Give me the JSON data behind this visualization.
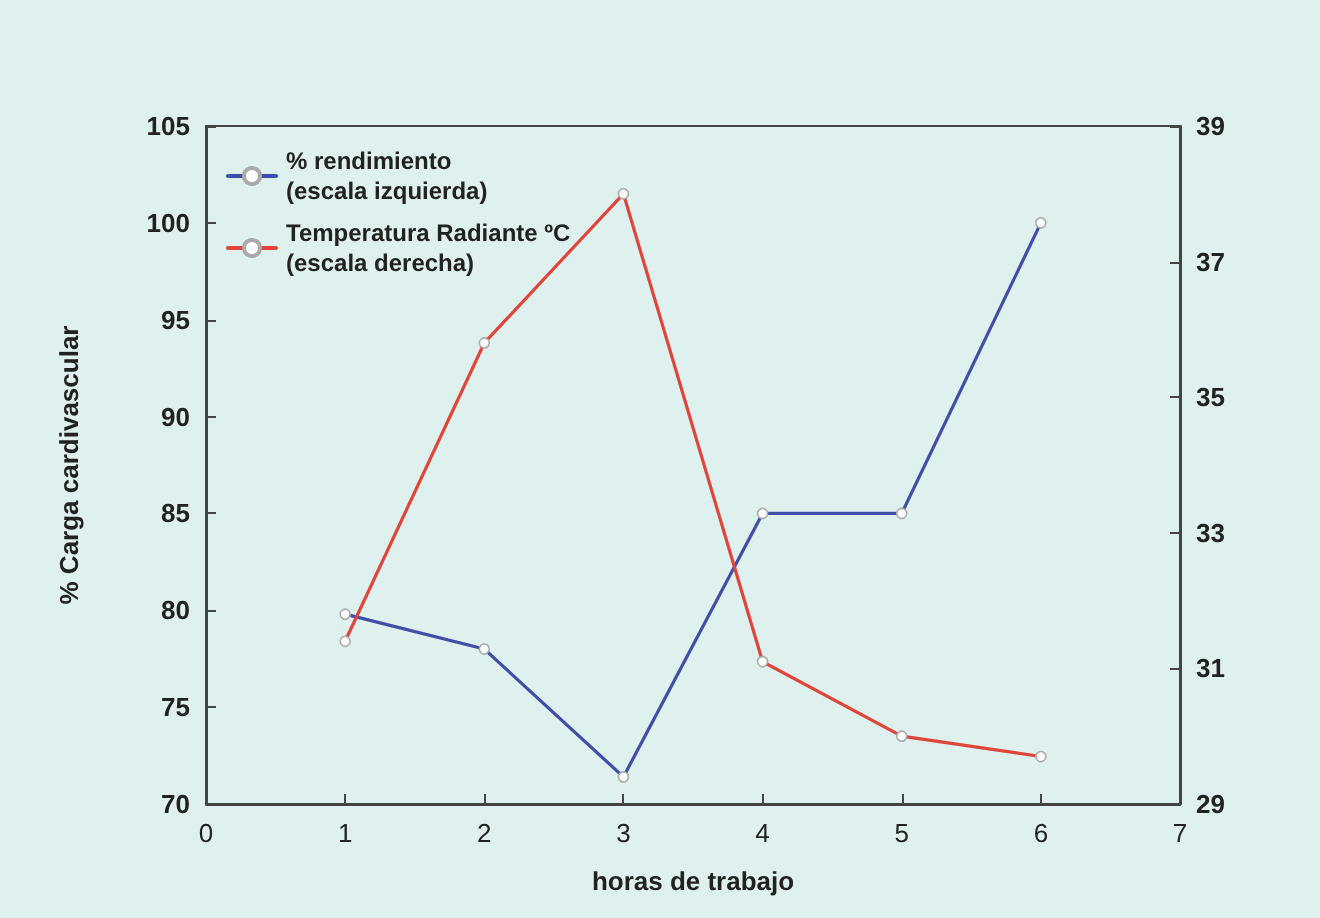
{
  "chart_data": {
    "type": "line",
    "xlabel": "horas de trabajo",
    "ylabel": "% Carga cardivascular",
    "x": [
      1,
      2,
      3,
      4,
      5,
      6
    ],
    "series": [
      {
        "name": "% rendimiento\n(escala izquierda)",
        "color": "#3f4fa8",
        "values": [
          79.8,
          78,
          71.4,
          85,
          85,
          100
        ]
      },
      {
        "name": "Temperatura Radiante ºC\n(escala derecha)",
        "color": "#e0453a",
        "axis": "y2",
        "values": [
          31.4,
          35.8,
          38.0,
          31.1,
          30.0,
          29.7
        ]
      }
    ],
    "xlim": [
      0,
      7
    ],
    "xticks": [
      0,
      1,
      2,
      3,
      4,
      5,
      6,
      7
    ],
    "ylim": [
      70,
      105
    ],
    "yticks": [
      70,
      75,
      80,
      85,
      90,
      95,
      100,
      105
    ],
    "y2lim": [
      29,
      39
    ],
    "y2ticks": [
      29,
      31,
      33,
      35,
      37,
      39
    ],
    "grid": false,
    "legend": "top left",
    "marker": "circle",
    "line_style": "solid"
  }
}
